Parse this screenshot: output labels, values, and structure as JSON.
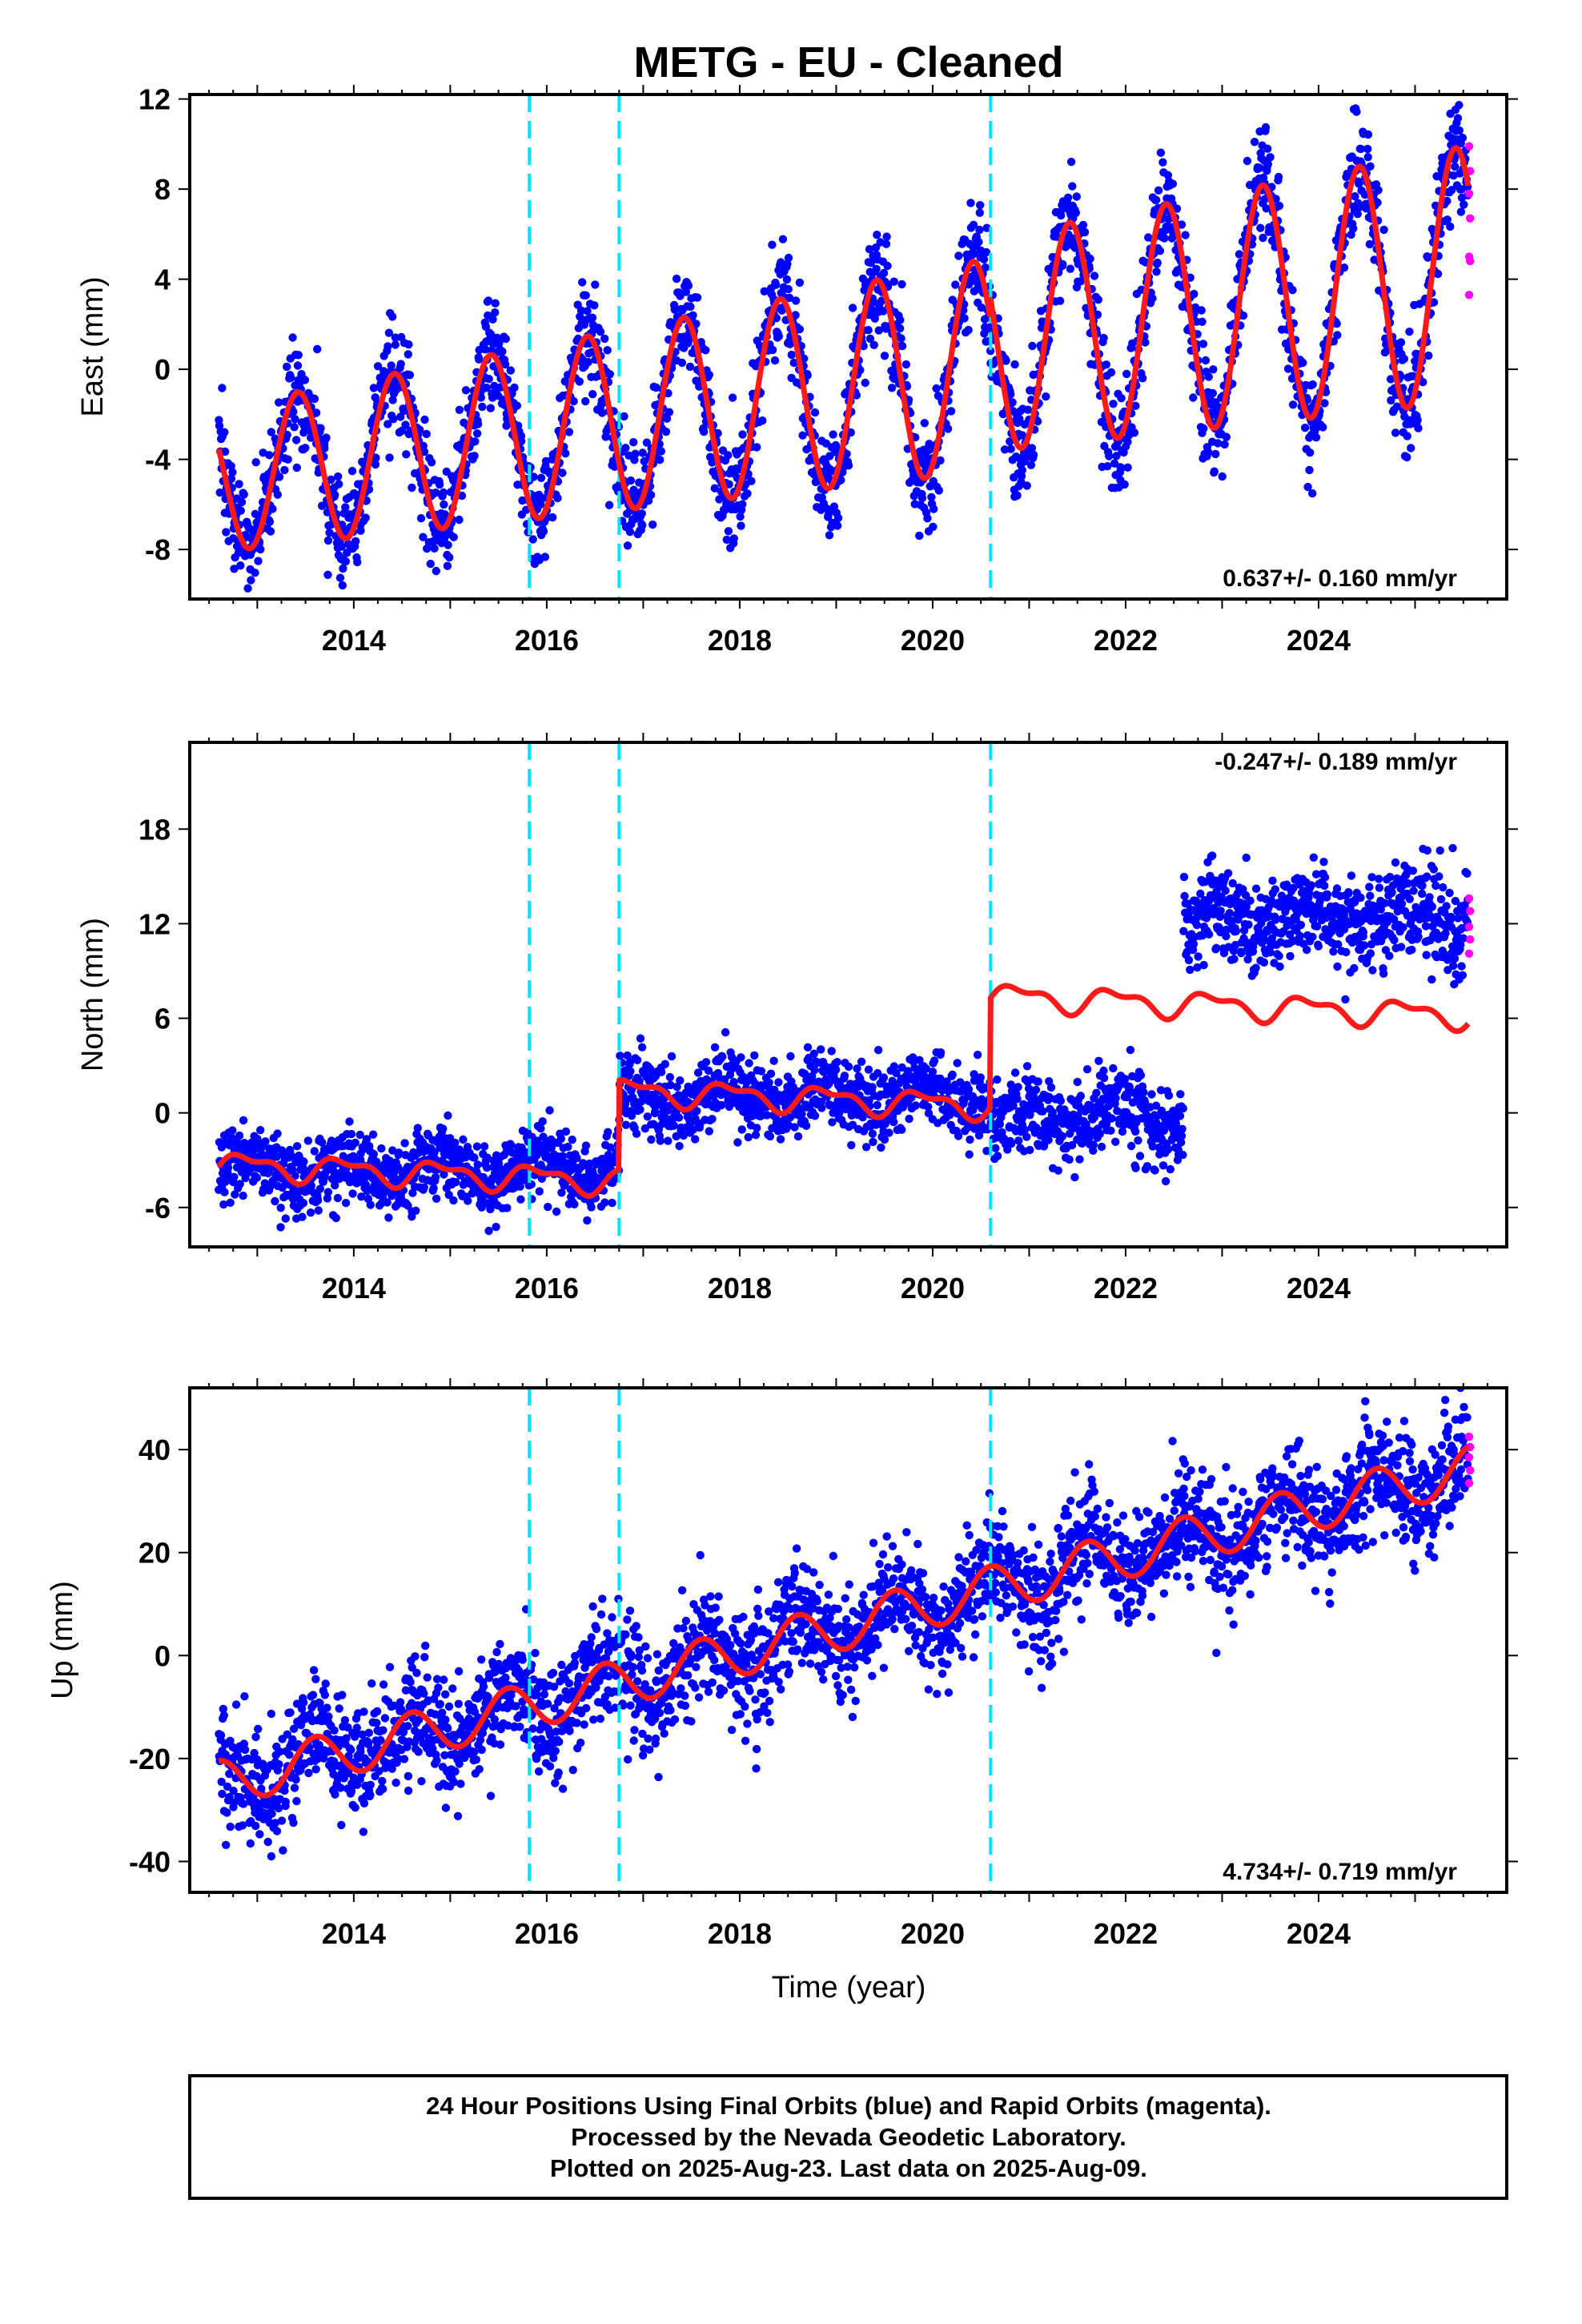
{
  "title": "METG  - EU - Cleaned",
  "xlabel": "Time (year)",
  "colors": {
    "final_points": "#0000ff",
    "rapid_points": "#ff00ff",
    "model_line": "#ff1a1a",
    "offset_lines": "#00e5ff",
    "frame": "#000000"
  },
  "footer": {
    "line1": "24 Hour Positions Using Final Orbits (blue) and Rapid Orbits (magenta).",
    "line2": "Processed by the Nevada Geodetic Laboratory.",
    "line3": "Plotted on 2025-Aug-23. Last data on 2025-Aug-09."
  },
  "chart_data": [
    {
      "type": "scatter",
      "component": "East",
      "ylabel": "East (mm)",
      "rate": "0.637+/- 0.160 mm/yr",
      "xlim": [
        2012.3,
        2025.95
      ],
      "ylim": [
        -10.2,
        12.2
      ],
      "xticks": [
        2014,
        2016,
        2018,
        2020,
        2022,
        2024
      ],
      "yticks": [
        -8,
        -4,
        0,
        4,
        8,
        12
      ],
      "offset_epochs": [
        2015.82,
        2016.75,
        2020.6
      ],
      "data_span": [
        2012.6,
        2025.55
      ],
      "model": {
        "trend_rate": 0.637,
        "value_at_start": -4.9,
        "annual_amplitude": 3.2,
        "annual_peak": 0.42,
        "amplitude_growth": 0.06,
        "steps": [
          {
            "epoch": 2020.6,
            "size": 0.9
          }
        ],
        "scatter_sd": 1.2
      },
      "rapid_values": [
        9.9,
        8.8,
        7.8,
        6.7,
        5.0,
        4.8,
        3.3
      ],
      "grid": false,
      "legend": "none"
    },
    {
      "type": "scatter",
      "component": "North",
      "ylabel": "North (mm)",
      "rate": "-0.247+/- 0.189 mm/yr",
      "xlim": [
        2012.3,
        2025.95
      ],
      "ylim": [
        -8.5,
        23.5
      ],
      "xticks": [
        2014,
        2016,
        2018,
        2020,
        2022,
        2024
      ],
      "yticks": [
        -6,
        0,
        6,
        12,
        18
      ],
      "offset_epochs": [
        2015.82,
        2016.75,
        2020.6
      ],
      "data_span": [
        2012.6,
        2025.55
      ],
      "model": {
        "segments": [
          {
            "start": 2012.6,
            "end": 2016.75,
            "base": -3.3
          },
          {
            "start": 2016.75,
            "end": 2020.6,
            "base": 1.4
          },
          {
            "start": 2020.6,
            "end": 2025.55,
            "base": 7.4
          }
        ],
        "trend_rate": -0.247,
        "annual_amplitude": 0.7,
        "data_segments": [
          {
            "start": 2012.6,
            "end": 2016.75,
            "level": -3.6,
            "sd": 1.1
          },
          {
            "start": 2016.75,
            "end": 2020.6,
            "level": 1.0,
            "sd": 1.2
          },
          {
            "start": 2020.6,
            "end": 2022.6,
            "level": -0.3,
            "sd": 1.3
          },
          {
            "start": 2022.6,
            "end": 2025.55,
            "level": 12.4,
            "sd": 1.5
          }
        ]
      },
      "rapid_values": [
        13.6,
        12.8,
        11.8,
        11.0,
        10.1
      ],
      "grid": false,
      "legend": "none"
    },
    {
      "type": "scatter",
      "component": "Up",
      "ylabel": "Up (mm)",
      "rate": "4.734+/- 0.719 mm/yr",
      "xlim": [
        2012.3,
        2025.95
      ],
      "ylim": [
        -46,
        52
      ],
      "xticks": [
        2014,
        2016,
        2018,
        2020,
        2022,
        2024
      ],
      "yticks": [
        -40,
        -20,
        0,
        20,
        40
      ],
      "offset_epochs": [
        2015.82,
        2016.75,
        2020.6
      ],
      "data_span": [
        2012.6,
        2025.55
      ],
      "model": {
        "trend_rate": 4.734,
        "value_at_start": -25,
        "annual_amplitude": 4.5,
        "annual_peak": 0.6,
        "steps": [],
        "scatter_sd": 5.5
      },
      "rapid_values": [
        42.5,
        40.5,
        38.5,
        36.0,
        33.5
      ],
      "grid": false,
      "legend": "none"
    }
  ]
}
